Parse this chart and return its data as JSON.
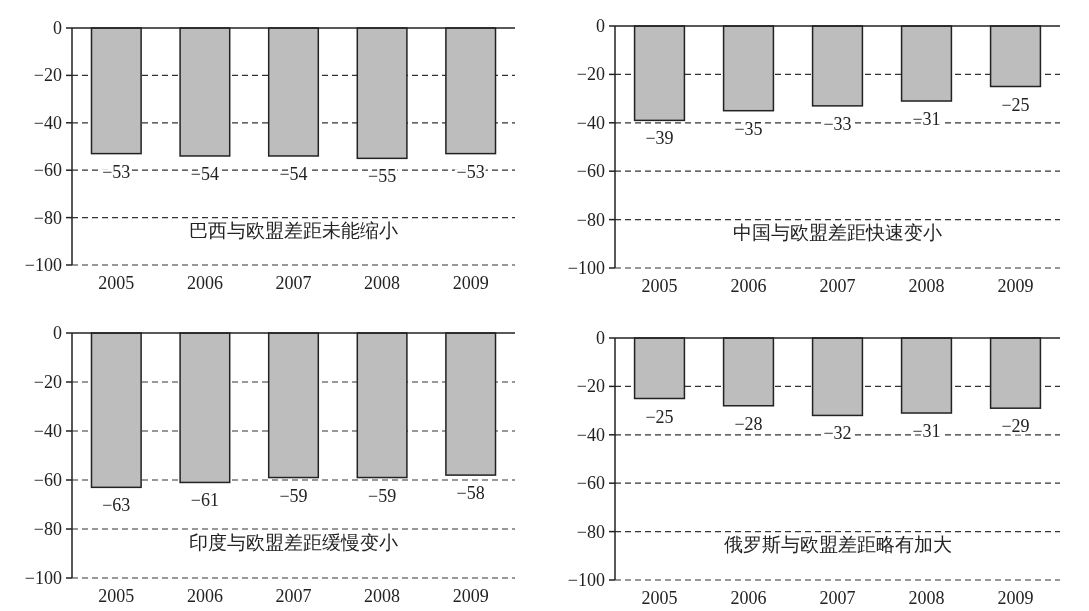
{
  "chart_data": [
    {
      "type": "bar",
      "title": "巴西与欧盟差距未能缩小",
      "categories": [
        "2005",
        "2006",
        "2007",
        "2008",
        "2009"
      ],
      "values": [
        -53,
        -54,
        -54,
        -55,
        -53
      ],
      "color": "#bdbdbd",
      "ylim": [
        -100,
        0
      ],
      "yticks": [
        0,
        -20,
        -40,
        -60,
        -80,
        -100
      ],
      "grid": "y",
      "data_labels": true
    },
    {
      "type": "bar",
      "title": "中国与欧盟差距快速变小",
      "categories": [
        "2005",
        "2006",
        "2007",
        "2008",
        "2009"
      ],
      "values": [
        -39,
        -35,
        -33,
        -31,
        -25
      ],
      "color": "#bdbdbd",
      "ylim": [
        -100,
        0
      ],
      "yticks": [
        0,
        -20,
        -40,
        -60,
        -80,
        -100
      ],
      "grid": "y",
      "data_labels": true
    },
    {
      "type": "bar",
      "title": "印度与欧盟差距缓慢变小",
      "categories": [
        "2005",
        "2006",
        "2007",
        "2008",
        "2009"
      ],
      "values": [
        -63,
        -61,
        -59,
        -59,
        -58
      ],
      "color": "#bdbdbd",
      "ylim": [
        -100,
        0
      ],
      "yticks": [
        0,
        -20,
        -40,
        -60,
        -80,
        -100
      ],
      "grid": "y",
      "data_labels": true
    },
    {
      "type": "bar",
      "title": "俄罗斯与欧盟差距略有加大",
      "categories": [
        "2005",
        "2006",
        "2007",
        "2008",
        "2009"
      ],
      "values": [
        -25,
        -28,
        -32,
        -31,
        -29
      ],
      "color": "#bdbdbd",
      "ylim": [
        -100,
        0
      ],
      "yticks": [
        0,
        -20,
        -40,
        -60,
        -80,
        -100
      ],
      "grid": "y",
      "data_labels": true
    }
  ]
}
